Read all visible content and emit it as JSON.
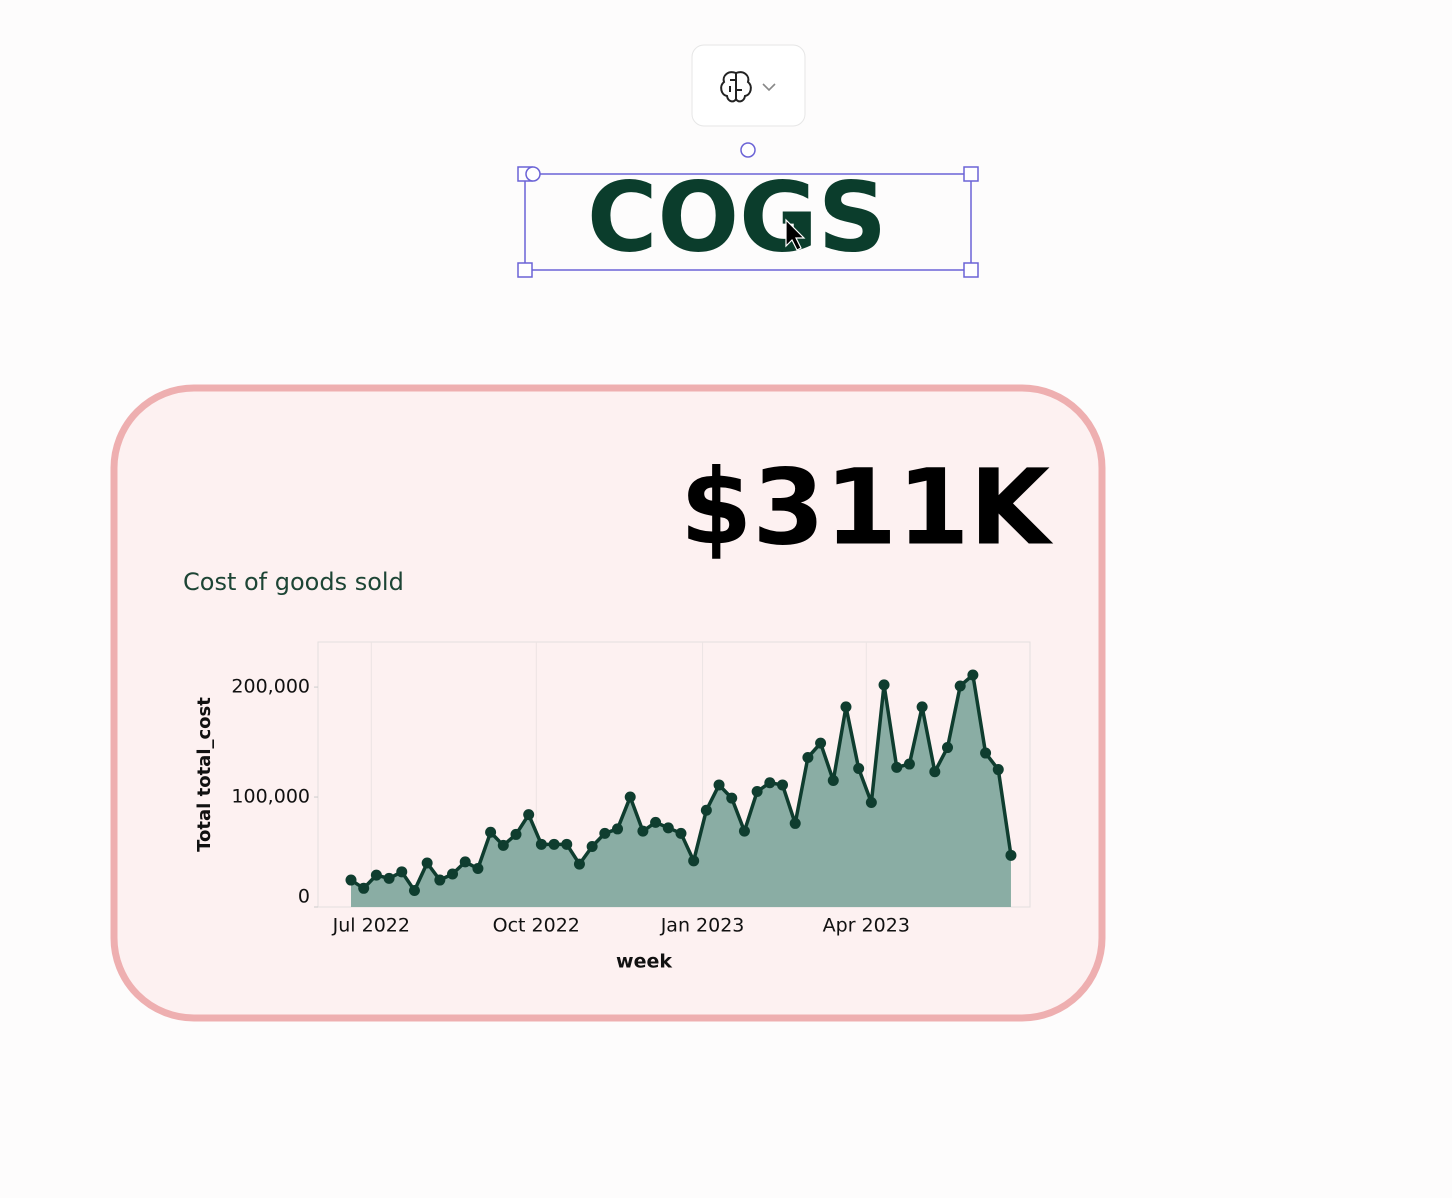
{
  "title": "COGS",
  "metric": {
    "value": "$311K",
    "label": "Cost of goods sold"
  },
  "chart_data": {
    "type": "area",
    "x": [
      0,
      1,
      2,
      3,
      4,
      5,
      6,
      7,
      8,
      9,
      10,
      11,
      12,
      13,
      14,
      15,
      16,
      17,
      18,
      19,
      20,
      21,
      22,
      23,
      24,
      25,
      26,
      27,
      28,
      29,
      30,
      31,
      32,
      33,
      34,
      35,
      36,
      37,
      38,
      39,
      40,
      41,
      42,
      43,
      44,
      45,
      46,
      47,
      48,
      49,
      50,
      51,
      52
    ],
    "series": [
      {
        "name": "Total total_cost",
        "color": "#0f3d2f",
        "fill": "#8aada4",
        "values": [
          24500,
          17000,
          29000,
          26000,
          32000,
          15000,
          40000,
          24500,
          30000,
          41000,
          35000,
          68000,
          56000,
          66000,
          84000,
          57000,
          57000,
          57000,
          39000,
          55000,
          67000,
          71000,
          100000,
          69000,
          77000,
          72000,
          67000,
          42000,
          88000,
          111000,
          99000,
          69000,
          105000,
          113000,
          111000,
          76000,
          136000,
          149000,
          115000,
          182000,
          126000,
          95000,
          202000,
          127000,
          130000,
          182000,
          123000,
          145000,
          201000,
          211000,
          140000,
          125000,
          47000
        ]
      }
    ],
    "xlabel": "week",
    "ylabel": "Total total_cost",
    "xlim": [
      -2.6,
      53.5
    ],
    "ylim": [
      0,
      241000
    ],
    "xticks": [
      {
        "value": 1.6,
        "label": "Jul 2022"
      },
      {
        "value": 14.6,
        "label": "Oct 2022"
      },
      {
        "value": 27.7,
        "label": "Jan 2023"
      },
      {
        "value": 40.6,
        "label": "Apr 2023"
      }
    ],
    "yticks": [
      0,
      {
        "value": 100000,
        "label": "100,000"
      },
      {
        "value": 200000,
        "label": "200,000"
      }
    ],
    "grid": true
  }
}
